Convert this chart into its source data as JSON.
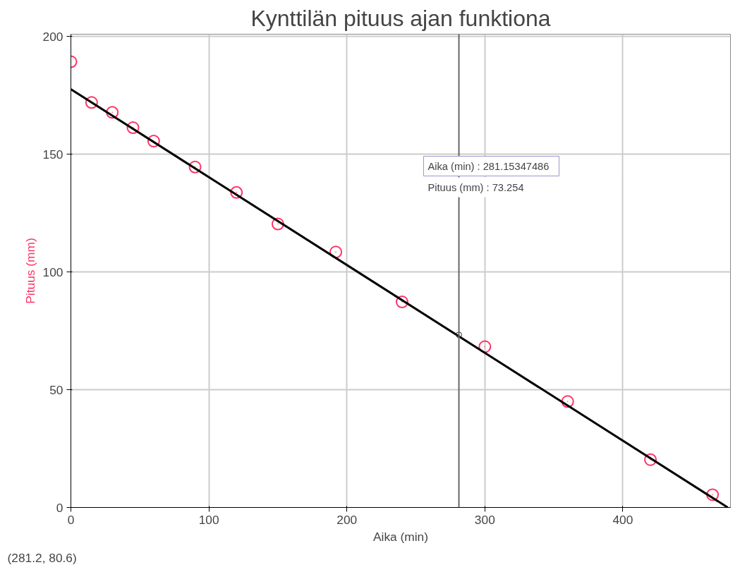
{
  "chart_data": {
    "type": "scatter",
    "title": "Kynttilän pituus ajan funktiona",
    "xlabel": "Aika (min)",
    "ylabel": "Pituus (mm)",
    "x": [
      0,
      15,
      30,
      45,
      60,
      90,
      120,
      150,
      192,
      240,
      300,
      360,
      420,
      465
    ],
    "series": [
      {
        "color": "#ff3366",
        "marker": "circle",
        "values": [
          189.3,
          172,
          167.8,
          161.3,
          155.6,
          144.6,
          133.8,
          120.4,
          108.5,
          87.3,
          68.3,
          45,
          20.3,
          5.4
        ]
      },
      {
        "type": "line",
        "color": "#000000",
        "line_style": "solid",
        "x": [
          0,
          476
        ],
        "values": [
          177.6,
          0
        ]
      },
      {
        "type": "scatter",
        "color": "#333333",
        "marker": "circle",
        "x": [
          281.2
        ],
        "values": [
          73.3
        ]
      }
    ],
    "xlim": [
      0,
      478
    ],
    "ylim": [
      0,
      201
    ],
    "xticks": [
      0,
      100,
      200,
      300,
      400
    ],
    "yticks": [
      0,
      50,
      100,
      150,
      200
    ],
    "grid": true,
    "ref_lines": [
      {
        "axis": "x",
        "value": 281.2,
        "color": "#666666"
      }
    ],
    "annotations": [
      "Aika (min)   : 281.15347486",
      "Pituus (mm)         : 73.254",
      "(281.2, 80.6)"
    ]
  }
}
